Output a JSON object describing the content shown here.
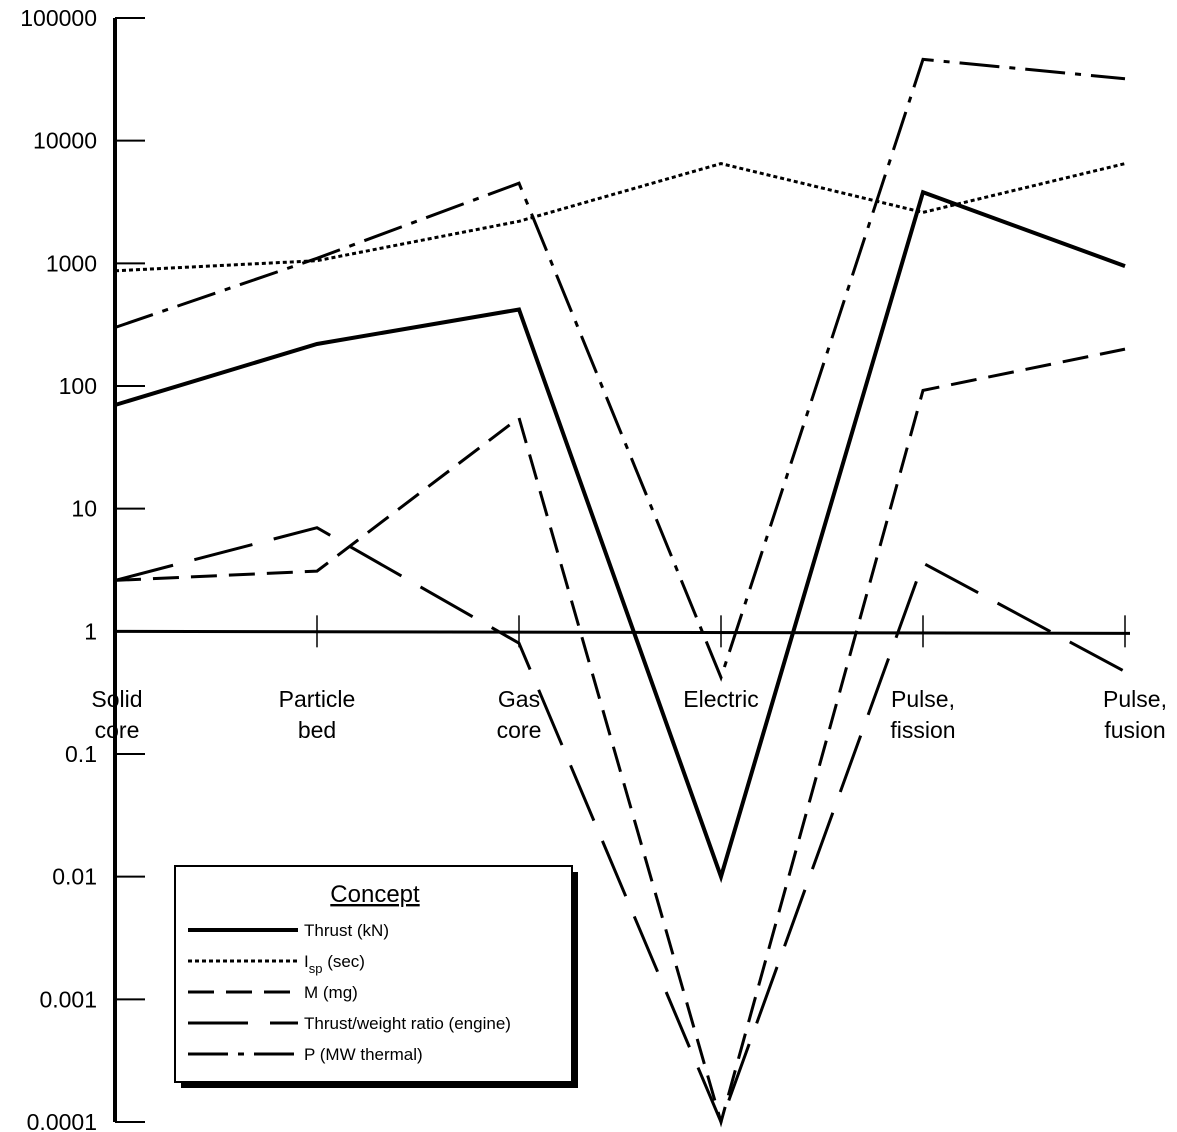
{
  "chart_data": {
    "type": "line",
    "y_scale": "log",
    "ylim": [
      0.0001,
      100000
    ],
    "y_ticks": [
      {
        "value": 100000,
        "label": "100000"
      },
      {
        "value": 10000,
        "label": "10000"
      },
      {
        "value": 1000,
        "label": "1000"
      },
      {
        "value": 100,
        "label": "100"
      },
      {
        "value": 10,
        "label": "10"
      },
      {
        "value": 1,
        "label": "1"
      },
      {
        "value": 0.1,
        "label": "0.1"
      },
      {
        "value": 0.01,
        "label": "0.01"
      },
      {
        "value": 0.001,
        "label": "0.001"
      },
      {
        "value": 0.0001,
        "label": "0.0001"
      }
    ],
    "categories": [
      [
        "Solid",
        "core"
      ],
      [
        "Particle",
        "bed"
      ],
      [
        "Gas",
        "core"
      ],
      [
        "Electric"
      ],
      [
        "Pulse,",
        "fission"
      ],
      [
        "Pulse,",
        "fusion"
      ]
    ],
    "x_axis_at": 1,
    "legend": {
      "title": "Concept",
      "position": "bottom-left"
    },
    "series": [
      {
        "name": "Thrust (kN)",
        "style": "solid-thick",
        "values": [
          70,
          220,
          420,
          0.01,
          3800,
          950
        ]
      },
      {
        "name": "I",
        "name_sub": "sp",
        "name_suffix": " (sec)",
        "style": "dotted",
        "values": [
          870,
          1050,
          2200,
          6500,
          2600,
          6500
        ]
      },
      {
        "name": "M (mg)",
        "style": "dashed",
        "values": [
          2.6,
          3.1,
          55,
          0.0001,
          92,
          200
        ]
      },
      {
        "name": "Thrust/weight ratio (engine)",
        "style": "long-dash",
        "values": [
          2.6,
          7,
          0.8,
          0.0001,
          3.6,
          0.47
        ]
      },
      {
        "name": "P (MW thermal)",
        "style": "dash-dot",
        "values": [
          300,
          1100,
          4500,
          0.42,
          46000,
          32000
        ]
      }
    ]
  }
}
